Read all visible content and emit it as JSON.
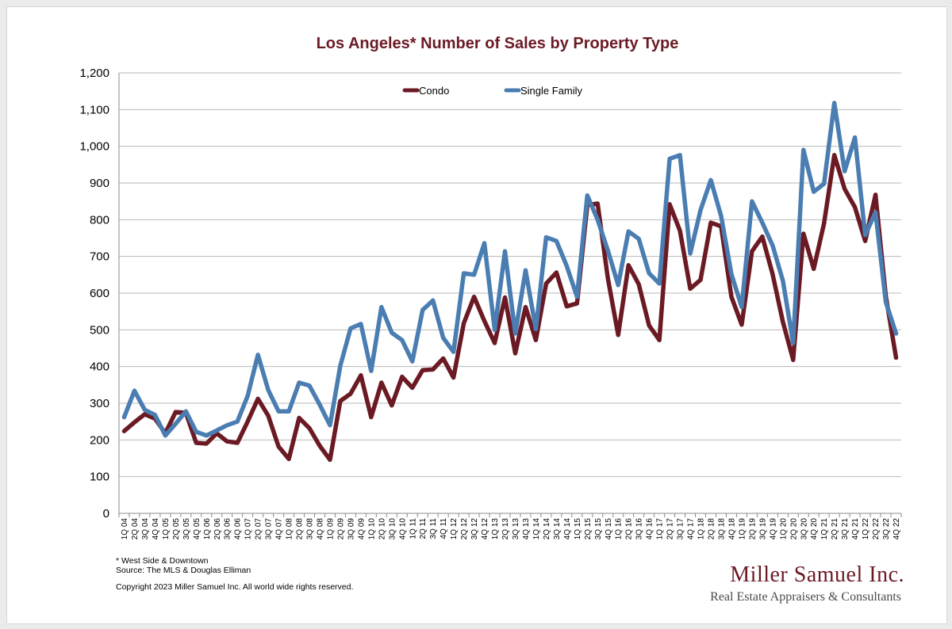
{
  "chart_data": {
    "type": "line",
    "title": "Los Angeles* Number of Sales by Property Type",
    "xlabel": "",
    "ylabel": "",
    "ylim": [
      0,
      1200
    ],
    "y_ticks": [
      0,
      100,
      200,
      300,
      400,
      500,
      600,
      700,
      800,
      900,
      1000,
      1100,
      1200
    ],
    "y_tick_labels": [
      "0",
      "100",
      "200",
      "300",
      "400",
      "500",
      "600",
      "700",
      "800",
      "900",
      "1,000",
      "1,100",
      "1,200"
    ],
    "grid": true,
    "legend": "top-center",
    "categories": [
      "1Q 04",
      "2Q 04",
      "3Q 04",
      "4Q 04",
      "1Q 05",
      "2Q 05",
      "3Q 05",
      "4Q 05",
      "1Q 06",
      "2Q 06",
      "3Q 06",
      "4Q 06",
      "1Q 07",
      "2Q 07",
      "3Q 07",
      "4Q 07",
      "1Q 08",
      "2Q 08",
      "3Q 08",
      "4Q 08",
      "1Q 09",
      "2Q 09",
      "3Q 09",
      "4Q 09",
      "1Q 10",
      "2Q 10",
      "3Q 10",
      "4Q 10",
      "1Q 11",
      "2Q 11",
      "3Q 11",
      "4Q 11",
      "1Q 12",
      "2Q 12",
      "3Q 12",
      "4Q 12",
      "1Q 13",
      "2Q 13",
      "3Q 13",
      "4Q 13",
      "1Q 14",
      "2Q 14",
      "3Q 14",
      "4Q 14",
      "1Q 15",
      "2Q 15",
      "3Q 15",
      "4Q 15",
      "1Q 16",
      "2Q 16",
      "3Q 16",
      "4Q 16",
      "1Q 17",
      "2Q 17",
      "3Q 17",
      "4Q 17",
      "1Q 18",
      "2Q 18",
      "3Q 18",
      "4Q 18",
      "1Q 19",
      "2Q 19",
      "3Q 19",
      "4Q 19",
      "1Q 20",
      "2Q 20",
      "3Q 20",
      "4Q 20",
      "1Q 21",
      "2Q 21",
      "3Q 21",
      "4Q 21",
      "1Q 22",
      "2Q 22",
      "3Q 22",
      "4Q 22"
    ],
    "series": [
      {
        "name": "Condo",
        "color": "#6b1a24",
        "values": [
          224,
          248,
          270,
          258,
          218,
          276,
          274,
          192,
          190,
          218,
          196,
          192,
          250,
          312,
          266,
          182,
          148,
          260,
          232,
          184,
          146,
          306,
          326,
          376,
          262,
          356,
          294,
          372,
          342,
          390,
          392,
          422,
          370,
          518,
          590,
          524,
          464,
          588,
          436,
          562,
          472,
          626,
          656,
          564,
          572,
          840,
          844,
          640,
          486,
          676,
          624,
          512,
          472,
          842,
          770,
          612,
          636,
          792,
          782,
          590,
          514,
          714,
          754,
          652,
          522,
          418,
          762,
          666,
          790,
          976,
          884,
          834,
          742,
          868,
          592,
          424
        ]
      },
      {
        "name": "Single Family",
        "color": "#4a7db1",
        "values": [
          262,
          334,
          282,
          268,
          212,
          244,
          278,
          222,
          212,
          226,
          240,
          250,
          320,
          432,
          336,
          278,
          278,
          356,
          348,
          296,
          240,
          402,
          504,
          516,
          388,
          562,
          492,
          472,
          414,
          554,
          580,
          478,
          440,
          654,
          650,
          736,
          500,
          714,
          490,
          662,
          502,
          752,
          742,
          674,
          590,
          866,
          800,
          716,
          622,
          768,
          748,
          654,
          626,
          966,
          976,
          708,
          826,
          908,
          810,
          652,
          562,
          850,
          792,
          730,
          634,
          464,
          990,
          876,
          898,
          1118,
          932,
          1024,
          758,
          820,
          576,
          490
        ]
      }
    ]
  },
  "footnotes": {
    "note": "* West Side & Downtown",
    "source": "Source: The MLS & Douglas Elliman",
    "copyright": "Copyright 2023 Miller Samuel Inc.  All world wide rights reserved."
  },
  "brand": {
    "name": "Miller Samuel Inc.",
    "tagline": "Real Estate Appraisers & Consultants"
  }
}
